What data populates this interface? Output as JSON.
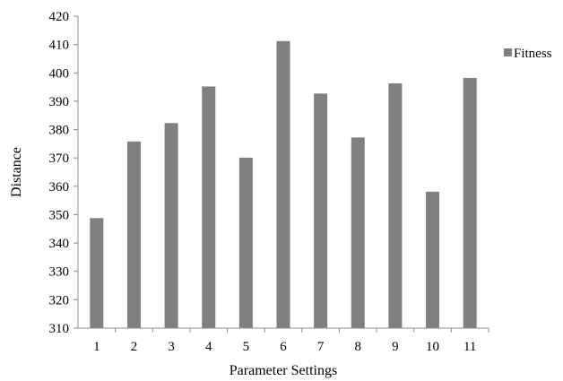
{
  "chart_data": {
    "type": "bar",
    "title": "",
    "xlabel": "Parameter Settings",
    "ylabel": "Distance",
    "categories": [
      "1",
      "2",
      "3",
      "4",
      "5",
      "6",
      "7",
      "8",
      "9",
      "10",
      "11"
    ],
    "series": [
      {
        "name": "Fitness",
        "color": "#808080",
        "values": [
          348.8,
          375.8,
          382.3,
          395.2,
          370.1,
          411.2,
          392.7,
          377.2,
          396.3,
          358.1,
          398.2
        ]
      }
    ],
    "ylim": [
      310,
      420
    ],
    "yticks": [
      310,
      320,
      330,
      340,
      350,
      360,
      370,
      380,
      390,
      400,
      410,
      420
    ],
    "grid": false,
    "legend_position": "right"
  }
}
